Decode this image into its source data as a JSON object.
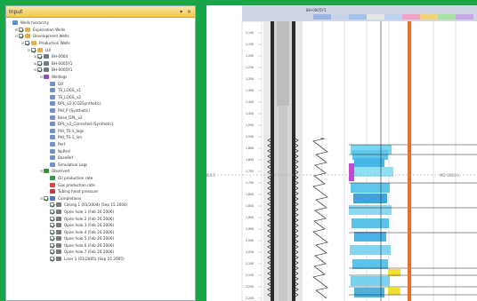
{
  "window": {
    "title": "Input"
  },
  "tree": [
    {
      "label": "Wells hierarchy",
      "depth": 0,
      "icon": "hierarchy-icon",
      "color": "#5b8fd6",
      "exp": "",
      "check": false
    },
    {
      "label": "Exploration Wells",
      "depth": 1,
      "icon": "folder-icon",
      "color": "#e0b04e",
      "exp": "+",
      "check": true
    },
    {
      "label": "Development Wells",
      "depth": 1,
      "icon": "folder-icon",
      "color": "#e0b04e",
      "exp": "-",
      "check": true
    },
    {
      "label": "Production Wells",
      "depth": 2,
      "icon": "folder-icon",
      "color": "#e0b04e",
      "exp": "-",
      "check": true
    },
    {
      "label": "LUI",
      "depth": 3,
      "icon": "folder-icon",
      "color": "#e0b04e",
      "exp": "-",
      "check": true
    },
    {
      "label": "BH-0004",
      "depth": 4,
      "icon": "well-icon",
      "color": "#6d7a8a",
      "exp": "+",
      "check": true
    },
    {
      "label": "BH-0005Y1",
      "depth": 4,
      "icon": "well-icon",
      "color": "#6d7a8a",
      "exp": "+",
      "check": true
    },
    {
      "label": "BH-0005Y1",
      "depth": 4,
      "icon": "well-icon",
      "color": "#6d7a8a",
      "exp": "-",
      "check": true
    },
    {
      "label": "Welllogs",
      "depth": 5,
      "icon": "welllogs-icon",
      "color": "#8e4fb8",
      "exp": "-",
      "check": false
    },
    {
      "label": "GR",
      "depth": 6,
      "icon": "log-icon",
      "color": "#7390c8",
      "exp": "",
      "check": false
    },
    {
      "label": "TS_LOGS_v1",
      "depth": 6,
      "icon": "log-icon",
      "color": "#7390c8",
      "exp": "",
      "check": false
    },
    {
      "label": "TS_LOGS_v2",
      "depth": 6,
      "icon": "log-icon",
      "color": "#7390c8",
      "exp": "",
      "check": false
    },
    {
      "label": "DPL_v2 (CO2Synthetic)",
      "depth": 6,
      "icon": "log-icon",
      "color": "#7390c8",
      "exp": "",
      "check": false
    },
    {
      "label": "PHI_P (Synthetic)",
      "depth": 6,
      "icon": "log-icon",
      "color": "#7390c8",
      "exp": "",
      "check": false
    },
    {
      "label": "Base_DPL_v2",
      "depth": 6,
      "icon": "log-icon",
      "color": "#7390c8",
      "exp": "",
      "check": false
    },
    {
      "label": "DPL_v2_Corrected (Synthetic)",
      "depth": 6,
      "icon": "log-icon",
      "color": "#7390c8",
      "exp": "",
      "check": false
    },
    {
      "label": "PHI_TS-1_logs",
      "depth": 6,
      "icon": "log-icon",
      "color": "#7390c8",
      "exp": "",
      "check": false
    },
    {
      "label": "PHI_TS-1_lim",
      "depth": 6,
      "icon": "log-icon",
      "color": "#7390c8",
      "exp": "",
      "check": false
    },
    {
      "label": "Perf",
      "depth": 6,
      "icon": "log-icon",
      "color": "#7390c8",
      "exp": "",
      "check": false
    },
    {
      "label": "NoPerf",
      "depth": 6,
      "icon": "log-icon",
      "color": "#7390c8",
      "exp": "",
      "check": false
    },
    {
      "label": "BaseRef",
      "depth": 6,
      "icon": "log-icon",
      "color": "#7390c8",
      "exp": "",
      "check": false
    },
    {
      "label": "Simulation Logs",
      "depth": 6,
      "icon": "log-icon",
      "color": "#7390c8",
      "exp": "",
      "check": false
    },
    {
      "label": "Observed",
      "depth": 5,
      "icon": "observed-icon",
      "color": "#3a8f3a",
      "exp": "-",
      "check": false
    },
    {
      "label": "Oil production rate",
      "depth": 6,
      "icon": "rate-icon",
      "color": "#2f9b4e",
      "exp": "",
      "check": false
    },
    {
      "label": "Gas production rate",
      "depth": 6,
      "icon": "rate-icon",
      "color": "#d04a4a",
      "exp": "",
      "check": false
    },
    {
      "label": "Tubing head pressure",
      "depth": 6,
      "icon": "rate-icon",
      "color": "#c23a3a",
      "exp": "",
      "check": false
    },
    {
      "label": "Completions",
      "depth": 5,
      "icon": "completions-icon",
      "color": "#4a78c2",
      "exp": "-",
      "check": true
    },
    {
      "label": "Casing 1 (01/2004) (Sep 15 2004)",
      "depth": 6,
      "icon": "casing-icon",
      "color": "#7b7b7b",
      "exp": "",
      "check": true
    },
    {
      "label": "Open hole 1 (Feb 26 2006)",
      "depth": 6,
      "icon": "casing-icon",
      "color": "#7b7b7b",
      "exp": "",
      "check": true
    },
    {
      "label": "Open hole 2 (Feb 26 2006)",
      "depth": 6,
      "icon": "casing-icon",
      "color": "#7b7b7b",
      "exp": "",
      "check": true
    },
    {
      "label": "Open hole 3 (Feb 26 2006)",
      "depth": 6,
      "icon": "casing-icon",
      "color": "#7b7b7b",
      "exp": "",
      "check": true
    },
    {
      "label": "Open hole 4 (Feb 26 2006)",
      "depth": 6,
      "icon": "casing-icon",
      "color": "#7b7b7b",
      "exp": "",
      "check": true
    },
    {
      "label": "Open hole 5 (Feb 26 2006)",
      "depth": 6,
      "icon": "casing-icon",
      "color": "#7b7b7b",
      "exp": "",
      "check": true
    },
    {
      "label": "Open hole 6 (Feb 26 2006)",
      "depth": 6,
      "icon": "casing-icon",
      "color": "#7b7b7b",
      "exp": "",
      "check": true
    },
    {
      "label": "Open hole 7 (Feb 26 2006)",
      "depth": 6,
      "icon": "casing-icon",
      "color": "#7b7b7b",
      "exp": "",
      "check": true
    },
    {
      "label": "Liner 1 (01/2005) (Sep 15 2005)",
      "depth": 6,
      "icon": "casing-icon",
      "color": "#7b7b7b",
      "exp": "",
      "check": true
    }
  ],
  "log_view": {
    "depth_labels": [
      "1,100",
      "1,150",
      "1,200",
      "1,250",
      "1,300",
      "1,350",
      "1,400",
      "1,450",
      "1,500",
      "1,550",
      "1,600",
      "1,650",
      "1,700",
      "1,750",
      "1,800",
      "1,850",
      "1,900",
      "1,950",
      "2,000",
      "2,050",
      "2,100",
      "2,150",
      "2,200",
      "2,250"
    ],
    "header_label": "BH-0005Y1",
    "md_marker_left": "MD 1850.0",
    "md_marker_right": "MD 1850.0"
  }
}
